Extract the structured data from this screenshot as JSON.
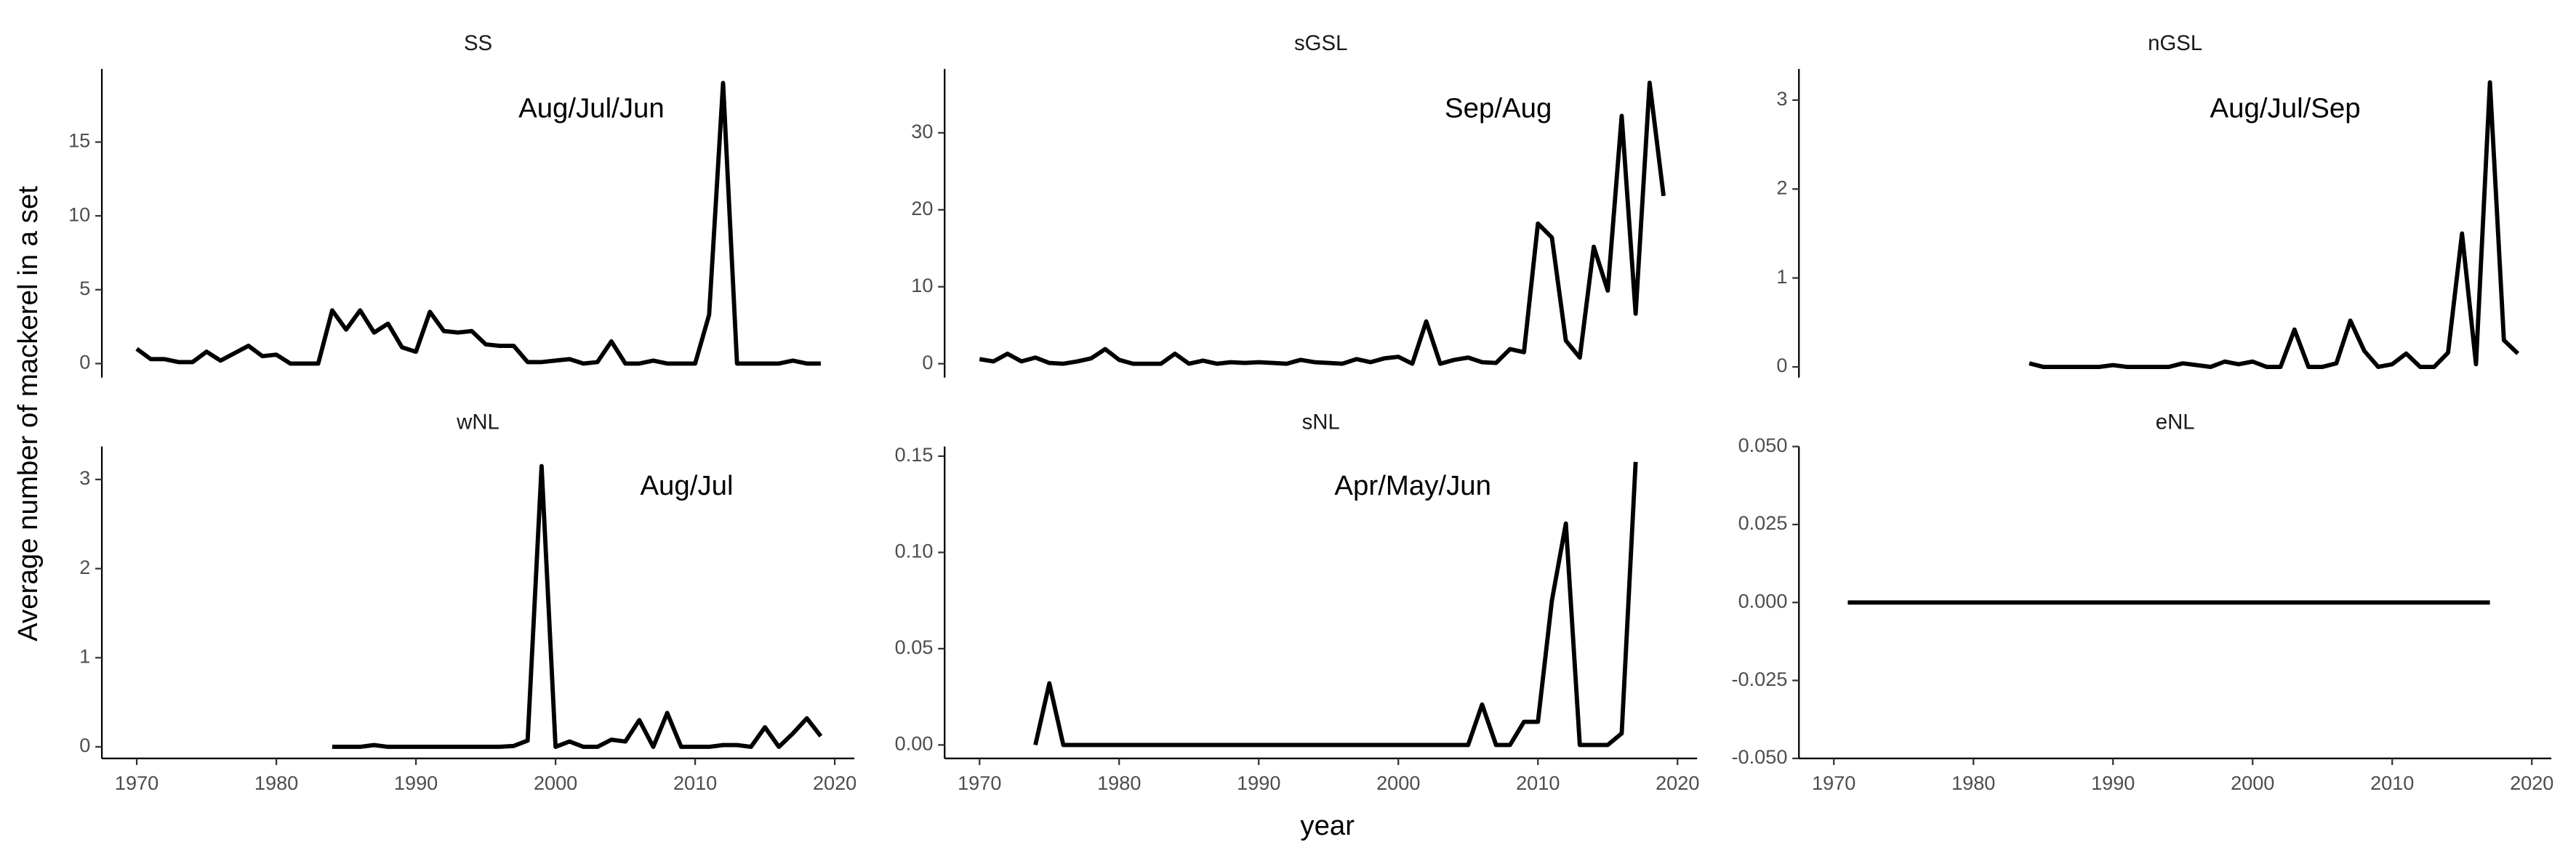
{
  "axis_titles": {
    "x": "year",
    "y": "Average number of mackerel in a set"
  },
  "chart_data": [
    {
      "type": "line",
      "title": "SS",
      "annotation": "Aug/Jul/Jun",
      "color": "#000000",
      "x": [
        1970,
        1971,
        1972,
        1973,
        1974,
        1975,
        1976,
        1977,
        1978,
        1979,
        1980,
        1981,
        1982,
        1983,
        1984,
        1985,
        1986,
        1987,
        1988,
        1989,
        1990,
        1991,
        1992,
        1993,
        1994,
        1995,
        1996,
        1997,
        1998,
        1999,
        2000,
        2001,
        2002,
        2003,
        2004,
        2005,
        2006,
        2007,
        2008,
        2009,
        2010,
        2011,
        2012,
        2013,
        2014,
        2015,
        2016,
        2017,
        2018,
        2019
      ],
      "values": [
        1.0,
        0.3,
        0.3,
        0.1,
        0.1,
        0.8,
        0.2,
        0.7,
        1.2,
        0.5,
        0.6,
        0,
        0,
        0,
        3.6,
        2.3,
        3.6,
        2.1,
        2.7,
        1.1,
        0.8,
        3.5,
        2.2,
        2.1,
        2.2,
        1.3,
        1.2,
        1.2,
        0.1,
        0.1,
        0.2,
        0.3,
        0,
        0.1,
        1.5,
        0,
        0,
        0.2,
        0,
        0,
        0,
        3.3,
        19,
        0,
        0,
        0,
        0,
        0.2,
        0,
        0
      ],
      "xlim": [
        1967.5,
        2021.4
      ],
      "ylim": [
        -0.95,
        19.95
      ],
      "yticks": [
        0,
        5,
        10,
        15
      ]
    },
    {
      "type": "line",
      "title": "sGSL",
      "annotation": "Sep/Aug",
      "color": "#000000",
      "x": [
        1970,
        1971,
        1972,
        1973,
        1974,
        1975,
        1976,
        1977,
        1978,
        1979,
        1980,
        1981,
        1982,
        1983,
        1984,
        1985,
        1986,
        1987,
        1988,
        1989,
        1990,
        1991,
        1992,
        1993,
        1994,
        1995,
        1996,
        1997,
        1998,
        1999,
        2000,
        2001,
        2002,
        2003,
        2004,
        2005,
        2006,
        2007,
        2008,
        2009,
        2010,
        2011,
        2012,
        2013,
        2014,
        2015,
        2016,
        2017,
        2018,
        2019
      ],
      "values": [
        0.6,
        0.3,
        1.3,
        0.3,
        0.8,
        0.1,
        0,
        0.3,
        0.7,
        1.9,
        0.5,
        0,
        0,
        0,
        1.3,
        0,
        0.4,
        0,
        0.2,
        0.1,
        0.2,
        0.1,
        0,
        0.5,
        0.2,
        0.1,
        0,
        0.6,
        0.2,
        0.7,
        0.9,
        0,
        5.5,
        0,
        0.5,
        0.8,
        0.2,
        0.1,
        1.9,
        1.5,
        18.2,
        16.4,
        3,
        0.8,
        15.2,
        9.5,
        32.2,
        6.5,
        36.5,
        21.8
      ],
      "xlim": [
        1967.5,
        2021.4
      ],
      "ylim": [
        -1.8,
        38.3
      ],
      "yticks": [
        0,
        10,
        20,
        30
      ]
    },
    {
      "type": "line",
      "title": "nGSL",
      "annotation": "Aug/Jul/Sep",
      "color": "#000000",
      "x": [
        1984,
        1985,
        1986,
        1987,
        1988,
        1989,
        1990,
        1991,
        1992,
        1993,
        1994,
        1995,
        1996,
        1997,
        1998,
        1999,
        2000,
        2001,
        2002,
        2003,
        2004,
        2005,
        2006,
        2007,
        2008,
        2009,
        2010,
        2011,
        2012,
        2013,
        2014,
        2015,
        2016,
        2017,
        2018,
        2019
      ],
      "values": [
        0.04,
        0,
        0,
        0,
        0,
        0,
        0.02,
        0,
        0,
        0,
        0,
        0.04,
        0.02,
        0,
        0.06,
        0.03,
        0.06,
        0,
        0,
        0.42,
        0,
        0,
        0.04,
        0.52,
        0.18,
        0,
        0.03,
        0.15,
        0,
        0,
        0.16,
        1.5,
        0.03,
        3.2,
        0.3,
        0.15
      ],
      "xlim": [
        1967.5,
        2021.4
      ],
      "ylim": [
        -0.12,
        3.35
      ],
      "yticks": [
        0,
        1,
        2,
        3
      ]
    },
    {
      "type": "line",
      "title": "wNL",
      "annotation": "Aug/Jul",
      "color": "#000000",
      "x": [
        1984,
        1985,
        1986,
        1987,
        1988,
        1989,
        1990,
        1991,
        1992,
        1993,
        1994,
        1995,
        1996,
        1997,
        1998,
        1999,
        2000,
        2001,
        2002,
        2003,
        2004,
        2005,
        2006,
        2007,
        2008,
        2009,
        2010,
        2011,
        2012,
        2013,
        2014,
        2015,
        2016,
        2017,
        2018,
        2019
      ],
      "values": [
        0,
        0,
        0,
        0.02,
        0,
        0,
        0,
        0,
        0,
        0,
        0,
        0,
        0,
        0.01,
        0.07,
        3.15,
        0,
        0.06,
        0,
        0,
        0.08,
        0.06,
        0.3,
        0,
        0.38,
        0,
        0,
        0,
        0.02,
        0.02,
        0,
        0.22,
        0,
        0.15,
        0.32,
        0.12
      ],
      "xlim": [
        1967.5,
        2021.4
      ],
      "ylim": [
        -0.13,
        3.37
      ],
      "yticks": [
        0,
        1,
        2,
        3
      ],
      "xticks": [
        1970,
        1980,
        1990,
        2000,
        2010,
        2020
      ]
    },
    {
      "type": "line",
      "title": "sNL",
      "annotation": "Apr/May/Jun",
      "color": "#000000",
      "x": [
        1974,
        1975,
        1976,
        1977,
        1978,
        1979,
        1980,
        1981,
        1982,
        1983,
        1984,
        1985,
        1986,
        1987,
        1988,
        1989,
        1990,
        1991,
        1992,
        1993,
        1994,
        1995,
        1996,
        1997,
        1998,
        1999,
        2000,
        2001,
        2002,
        2003,
        2004,
        2005,
        2006,
        2007,
        2008,
        2009,
        2010,
        2011,
        2012,
        2013,
        2014,
        2015,
        2016,
        2017
      ],
      "values": [
        0,
        0.032,
        0,
        0,
        0,
        0,
        0,
        0,
        0,
        0,
        0,
        0,
        0,
        0,
        0,
        0,
        0,
        0,
        0,
        0,
        0,
        0,
        0,
        0,
        0,
        0,
        0,
        0,
        0,
        0,
        0,
        0,
        0.021,
        0,
        0,
        0.012,
        0.012,
        0.075,
        0.115,
        0,
        0,
        0,
        0.006,
        0.147
      ],
      "xlim": [
        1967.5,
        2021.4
      ],
      "ylim": [
        -0.007,
        0.155
      ],
      "yticks": [
        {
          "value": 0,
          "label": "0.00"
        },
        {
          "value": 0.05,
          "label": "0.05"
        },
        {
          "value": 0.1,
          "label": "0.10"
        },
        {
          "value": 0.15,
          "label": "0.15"
        }
      ],
      "xticks": [
        1970,
        1980,
        1990,
        2000,
        2010,
        2020
      ]
    },
    {
      "type": "line",
      "title": "eNL",
      "color": "#000000",
      "x": [
        1971,
        1972,
        1973,
        1974,
        1975,
        1976,
        1977,
        1978,
        1979,
        1980,
        1981,
        1982,
        1983,
        1984,
        1985,
        1986,
        1987,
        1988,
        1989,
        1990,
        1991,
        1992,
        1993,
        1994,
        1995,
        1996,
        1997,
        1998,
        1999,
        2000,
        2001,
        2002,
        2003,
        2004,
        2005,
        2006,
        2007,
        2008,
        2009,
        2010,
        2011,
        2012,
        2013,
        2014,
        2015,
        2016,
        2017
      ],
      "values": [
        0,
        0,
        0,
        0,
        0,
        0,
        0,
        0,
        0,
        0,
        0,
        0,
        0,
        0,
        0,
        0,
        0,
        0,
        0,
        0,
        0,
        0,
        0,
        0,
        0,
        0,
        0,
        0,
        0,
        0,
        0,
        0,
        0,
        0,
        0,
        0,
        0,
        0,
        0,
        0,
        0,
        0,
        0,
        0,
        0,
        0,
        0
      ],
      "xlim": [
        1967.5,
        2021.4
      ],
      "ylim": [
        -0.05,
        0.05
      ],
      "yticks": [
        {
          "value": -0.05,
          "label": "-0.050"
        },
        {
          "value": -0.025,
          "label": "-0.025"
        },
        {
          "value": 0,
          "label": "0.000"
        },
        {
          "value": 0.025,
          "label": "0.025"
        },
        {
          "value": 0.05,
          "label": "0.050"
        }
      ],
      "xticks": [
        1970,
        1980,
        1990,
        2000,
        2010,
        2020
      ]
    }
  ]
}
